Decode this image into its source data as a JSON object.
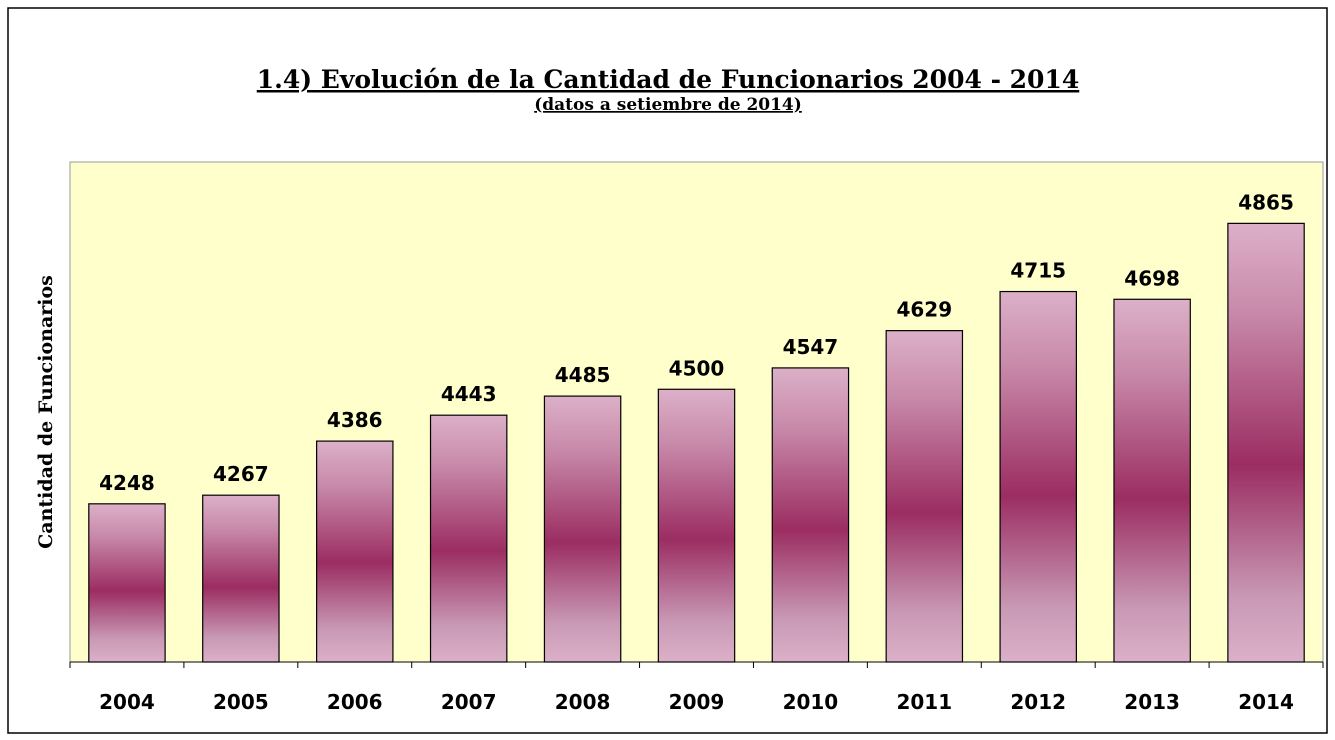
{
  "chart_data": {
    "type": "bar",
    "title": "1.4) Evolución de la Cantidad de Funcionarios 2004 - 2014",
    "subtitle": "(datos a setiembre de 2014)",
    "y_label": "Cantidad de Funcionarios",
    "categories": [
      "2004",
      "2005",
      "2006",
      "2007",
      "2008",
      "2009",
      "2010",
      "2011",
      "2012",
      "2013",
      "2014"
    ],
    "values": [
      4248,
      4267,
      4386,
      4443,
      4485,
      4500,
      4547,
      4629,
      4715,
      4698,
      4865
    ],
    "color": "#9b2d62",
    "ylim": [
      3900,
      5000
    ]
  }
}
